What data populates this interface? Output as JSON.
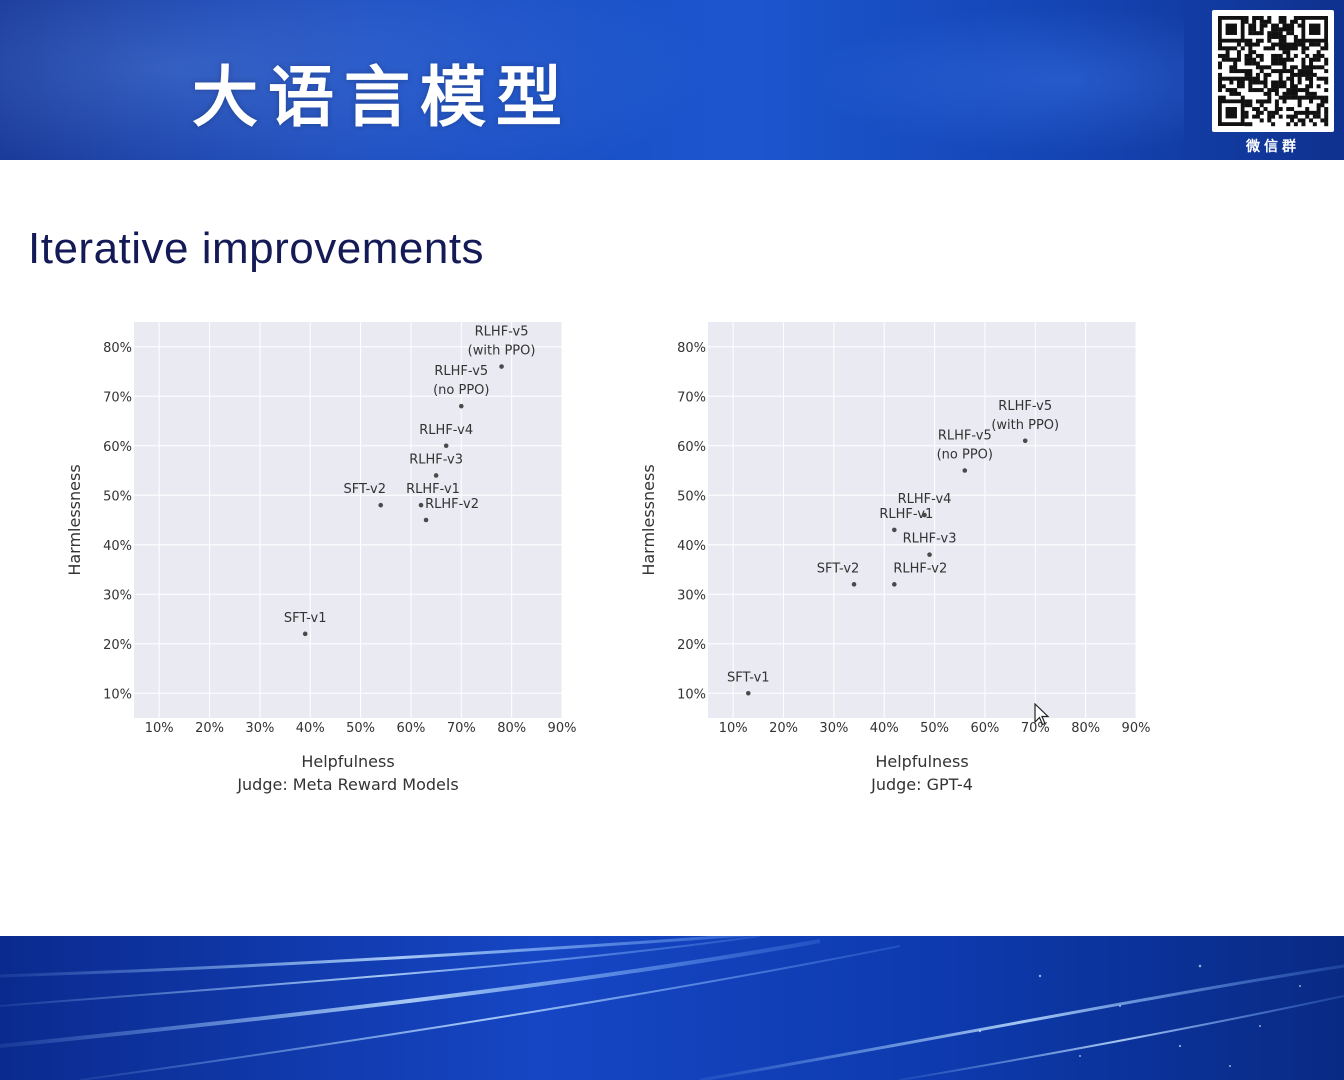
{
  "header": {
    "title": "大语言模型",
    "qr_caption": "微信群",
    "colors": {
      "band": "#1a50c8",
      "title": "#ffffff"
    }
  },
  "slide": {
    "title": "Iterative improvements",
    "title_color": "#141a55"
  },
  "chart_data": [
    {
      "type": "scatter",
      "xlabel": "Helpfulness",
      "subtitle": "Judge: Meta Reward Models",
      "ylabel": "Harmlessness",
      "xlim": [
        5,
        90
      ],
      "ylim": [
        5,
        85
      ],
      "xticks": [
        "10%",
        "20%",
        "30%",
        "40%",
        "50%",
        "60%",
        "70%",
        "80%",
        "90%"
      ],
      "yticks": [
        "10%",
        "20%",
        "30%",
        "40%",
        "50%",
        "60%",
        "70%",
        "80%"
      ],
      "grid": true,
      "background": "#eaeaf2",
      "points": [
        {
          "label": [
            "SFT-v1"
          ],
          "x": 39,
          "y": 22
        },
        {
          "label": [
            "SFT-v2"
          ],
          "x": 54,
          "y": 48
        },
        {
          "label": [
            "RLHF-v1"
          ],
          "x": 62,
          "y": 48
        },
        {
          "label": [
            "RLHF-v2"
          ],
          "x": 63,
          "y": 45
        },
        {
          "label": [
            "RLHF-v3"
          ],
          "x": 65,
          "y": 54
        },
        {
          "label": [
            "RLHF-v4"
          ],
          "x": 67,
          "y": 60
        },
        {
          "label": [
            "RLHF-v5",
            "(no PPO)"
          ],
          "x": 70,
          "y": 68
        },
        {
          "label": [
            "RLHF-v5",
            "(with PPO)"
          ],
          "x": 78,
          "y": 76
        }
      ]
    },
    {
      "type": "scatter",
      "xlabel": "Helpfulness",
      "subtitle": "Judge: GPT-4",
      "ylabel": "Harmlessness",
      "xlim": [
        5,
        90
      ],
      "ylim": [
        5,
        85
      ],
      "xticks": [
        "10%",
        "20%",
        "30%",
        "40%",
        "50%",
        "60%",
        "70%",
        "80%",
        "90%"
      ],
      "yticks": [
        "10%",
        "20%",
        "30%",
        "40%",
        "50%",
        "60%",
        "70%",
        "80%"
      ],
      "grid": true,
      "background": "#eaeaf2",
      "points": [
        {
          "label": [
            "SFT-v1"
          ],
          "x": 13,
          "y": 10
        },
        {
          "label": [
            "SFT-v2"
          ],
          "x": 34,
          "y": 32
        },
        {
          "label": [
            "RLHF-v2"
          ],
          "x": 42,
          "y": 32
        },
        {
          "label": [
            "RLHF-v3"
          ],
          "x": 49,
          "y": 38
        },
        {
          "label": [
            "RLHF-v1"
          ],
          "x": 42,
          "y": 43
        },
        {
          "label": [
            "RLHF-v4"
          ],
          "x": 48,
          "y": 46
        },
        {
          "label": [
            "RLHF-v5",
            "(no PPO)"
          ],
          "x": 56,
          "y": 55
        },
        {
          "label": [
            "RLHF-v5",
            "(with PPO)"
          ],
          "x": 68,
          "y": 61
        }
      ]
    }
  ]
}
